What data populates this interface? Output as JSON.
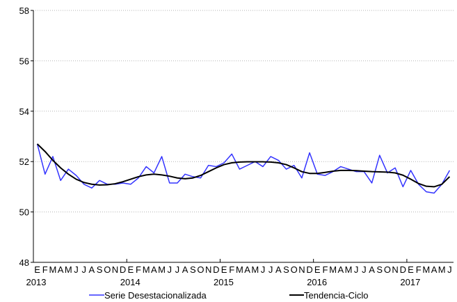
{
  "chart_data": {
    "type": "line",
    "title": "",
    "xlabel": "",
    "ylabel": "",
    "ylim": [
      48,
      58
    ],
    "y_ticks": [
      48,
      50,
      52,
      54,
      56,
      58
    ],
    "month_letters": [
      "E",
      "F",
      "M",
      "A",
      "M",
      "J",
      "J",
      "A",
      "S",
      "O",
      "N",
      "D"
    ],
    "years": [
      "2013",
      "2014",
      "2015",
      "2016",
      "2017"
    ],
    "start": "2013-01",
    "end": "2017-05",
    "legend_position": "bottom",
    "series": [
      {
        "name": "Serie Desestacionalizada",
        "color": "#3333ff",
        "values": [
          52.7,
          51.5,
          52.2,
          51.25,
          51.7,
          51.45,
          51.1,
          50.95,
          51.25,
          51.1,
          51.1,
          51.15,
          51.1,
          51.35,
          51.8,
          51.55,
          52.2,
          51.15,
          51.15,
          51.5,
          51.4,
          51.35,
          51.85,
          51.8,
          51.95,
          52.3,
          51.7,
          51.85,
          52.0,
          51.8,
          52.2,
          52.05,
          51.7,
          51.85,
          51.35,
          52.35,
          51.5,
          51.45,
          51.6,
          51.8,
          51.7,
          51.6,
          51.6,
          51.15,
          52.25,
          51.55,
          51.75,
          51.0,
          51.65,
          51.1,
          50.8,
          50.75,
          51.1,
          51.65
        ]
      },
      {
        "name": "Tendencia-Ciclo",
        "color": "#000000",
        "values": [
          52.7,
          52.4,
          52.05,
          51.75,
          51.5,
          51.3,
          51.17,
          51.1,
          51.07,
          51.08,
          51.12,
          51.2,
          51.3,
          51.4,
          51.47,
          51.5,
          51.47,
          51.42,
          51.35,
          51.32,
          51.35,
          51.45,
          51.6,
          51.75,
          51.88,
          51.95,
          51.98,
          51.99,
          51.99,
          51.99,
          51.98,
          51.95,
          51.88,
          51.75,
          51.6,
          51.53,
          51.53,
          51.57,
          51.62,
          51.65,
          51.65,
          51.64,
          51.62,
          51.6,
          51.59,
          51.58,
          51.55,
          51.46,
          51.3,
          51.13,
          51.02,
          51.0,
          51.1,
          51.4
        ]
      }
    ]
  }
}
